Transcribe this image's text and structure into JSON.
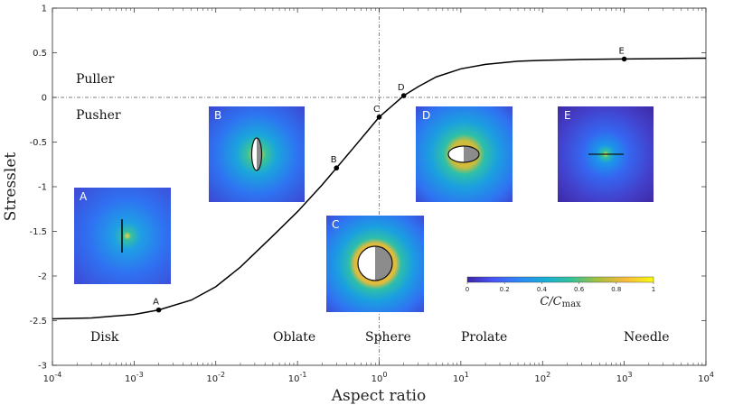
{
  "chart_data": {
    "type": "line",
    "xscale": "log",
    "xlabel": "Aspect ratio",
    "ylabel": "Stresslet",
    "xlim": [
      0.0001,
      10000
    ],
    "ylim": [
      -3,
      1
    ],
    "x_ticks": [
      0.0001,
      0.001,
      0.01,
      0.1,
      1,
      10,
      100,
      1000,
      10000
    ],
    "x_tick_exponents": [
      "-4",
      "-3",
      "-2",
      "-1",
      "0",
      "1",
      "2",
      "3",
      "4"
    ],
    "x_tick_base": "10",
    "y_ticks": [
      1,
      0.5,
      0,
      -0.5,
      -1,
      -1.5,
      -2,
      -2.5,
      -3
    ],
    "y_tick_labels": [
      "1",
      "0.5",
      "0",
      "-0.5",
      "-1",
      "-1.5",
      "-2",
      "-2.5",
      "-3"
    ],
    "series": [
      {
        "name": "stresslet",
        "x": [
          0.0001,
          0.0003,
          0.001,
          0.002,
          0.005,
          0.01,
          0.02,
          0.05,
          0.1,
          0.2,
          0.3,
          0.5,
          0.7,
          1,
          1.5,
          2,
          3,
          5,
          10,
          20,
          50,
          100,
          300,
          1000,
          3000,
          10000
        ],
        "y": [
          -2.48,
          -2.47,
          -2.43,
          -2.38,
          -2.27,
          -2.12,
          -1.9,
          -1.55,
          -1.28,
          -0.98,
          -0.79,
          -0.55,
          -0.39,
          -0.22,
          -0.08,
          0.02,
          0.12,
          0.23,
          0.32,
          0.37,
          0.405,
          0.415,
          0.425,
          0.43,
          0.435,
          0.44
        ]
      }
    ],
    "reference_lines": [
      {
        "orientation": "horizontal",
        "y": 0,
        "style": "dash-dot"
      },
      {
        "orientation": "vertical",
        "x": 1,
        "style": "dash-dot"
      }
    ],
    "points": [
      {
        "label": "A",
        "x": 0.002,
        "y": -2.38
      },
      {
        "label": "B",
        "x": 0.3,
        "y": -0.79
      },
      {
        "label": "C",
        "x": 1,
        "y": -0.22
      },
      {
        "label": "D",
        "x": 2,
        "y": 0.02
      },
      {
        "label": "E",
        "x": 1000,
        "y": 0.43
      }
    ],
    "region_labels": {
      "puller": "Puller",
      "pusher": "Pusher",
      "disk": "Disk",
      "oblate": "Oblate",
      "sphere": "Sphere",
      "prolate": "Prolate",
      "needle": "Needle"
    },
    "insets": [
      "A",
      "B",
      "C",
      "D",
      "E"
    ],
    "colorbar": {
      "title": "C/C",
      "title_subscript": "max",
      "ticks": [
        "0",
        "0.2",
        "0.4",
        "0.6",
        "0.8",
        "1"
      ],
      "colors": [
        "#3e26a8",
        "#4755f7",
        "#2e87f6",
        "#17b0d4",
        "#36c29a",
        "#a6bf3e",
        "#f8ba3d",
        "#f9fb0e"
      ]
    }
  }
}
